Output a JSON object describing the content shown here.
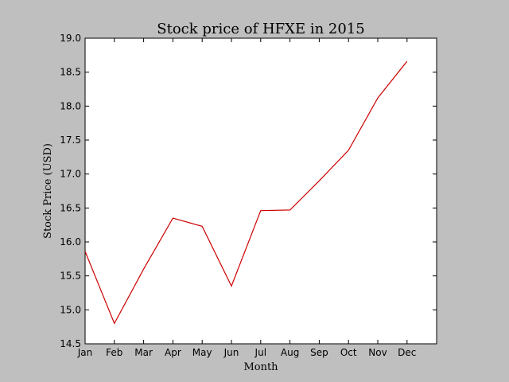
{
  "chart_data": {
    "type": "line",
    "title": "Stock price of HFXE in 2015",
    "xlabel": "Month",
    "ylabel": "Stock Price (USD)",
    "categories": [
      "Jan",
      "Feb",
      "Mar",
      "Apr",
      "May",
      "Jun",
      "Jul",
      "Aug",
      "Sep",
      "Oct",
      "Nov",
      "Dec"
    ],
    "series": [
      {
        "color": "#cc0000",
        "values": [
          15.86,
          14.8,
          15.6,
          16.35,
          16.23,
          15.35,
          16.46,
          16.47,
          16.9,
          17.35,
          18.12,
          18.66
        ]
      }
    ],
    "ylim": [
      14.5,
      19.0
    ],
    "yticks": [
      "14.5",
      "15.0",
      "15.5",
      "16.0",
      "16.5",
      "17.0",
      "17.5",
      "18.0",
      "18.5",
      "19.0"
    ],
    "grid": false,
    "legend": false
  }
}
